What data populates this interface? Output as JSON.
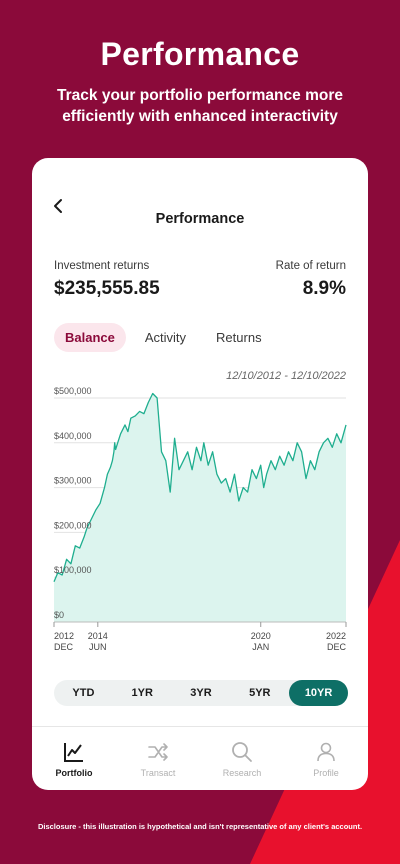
{
  "hero": {
    "title": "Performance",
    "subtitle": "Track your portfolio performance more efficiently with enhanced interactivity"
  },
  "colors": {
    "background": "#8b0a3a",
    "accent_red": "#e8112d",
    "chart_line": "#1fae8f",
    "chart_fill": "#dcf4ee",
    "active_period": "#0e6f66"
  },
  "screen": {
    "back_icon": "chevron-left-icon",
    "title": "Performance",
    "investment_returns": {
      "label": "Investment returns",
      "value": "$235,555.85"
    },
    "rate_of_return": {
      "label": "Rate of return",
      "value": "8.9%"
    },
    "tabs": [
      {
        "label": "Balance",
        "active": true
      },
      {
        "label": "Activity",
        "active": false
      },
      {
        "label": "Returns",
        "active": false
      }
    ],
    "date_range": "12/10/2012 - 12/10/2022",
    "periods": [
      {
        "label": "YTD",
        "active": false
      },
      {
        "label": "1YR",
        "active": false
      },
      {
        "label": "3YR",
        "active": false
      },
      {
        "label": "5YR",
        "active": false
      },
      {
        "label": "10YR",
        "active": true
      }
    ]
  },
  "chart_data": {
    "type": "area",
    "ylim": [
      0,
      500000
    ],
    "xlim": [
      2012.92,
      2022.92
    ],
    "y_ticks": [
      {
        "value": 500000,
        "label": "$500,000"
      },
      {
        "value": 400000,
        "label": "$400,000"
      },
      {
        "value": 300000,
        "label": "$300,000"
      },
      {
        "value": 200000,
        "label": "$200,000"
      },
      {
        "value": 100000,
        "label": "$100,000"
      },
      {
        "value": 0,
        "label": "$0"
      }
    ],
    "x_ticks": [
      {
        "value": 2012.92,
        "year": "2012",
        "month": "DEC"
      },
      {
        "value": 2014.42,
        "year": "2014",
        "month": "JUN"
      },
      {
        "value": 2020.0,
        "year": "2020",
        "month": "JAN"
      },
      {
        "value": 2022.92,
        "year": "2022",
        "month": "DEC"
      }
    ],
    "series": [
      {
        "x": [
          2012.92,
          2013.05,
          2013.2,
          2013.35,
          2013.5,
          2013.65,
          2013.8,
          2013.95,
          2014.05,
          2014.2,
          2014.35,
          2014.5,
          2014.65,
          2014.75,
          2014.85,
          2014.92,
          2014.97,
          2015.0,
          2015.03,
          2015.1,
          2015.2,
          2015.35,
          2015.45,
          2015.55,
          2015.7,
          2015.85,
          2016.0,
          2016.15,
          2016.3,
          2016.45,
          2016.6,
          2016.75,
          2016.9,
          2017.05,
          2017.2,
          2017.35,
          2017.5,
          2017.65,
          2017.8,
          2017.95,
          2018.05,
          2018.2,
          2018.35,
          2018.5,
          2018.65,
          2018.8,
          2018.95,
          2019.1,
          2019.25,
          2019.4,
          2019.55,
          2019.7,
          2019.85,
          2020.0,
          2020.1,
          2020.2,
          2020.35,
          2020.5,
          2020.65,
          2020.8,
          2020.95,
          2021.1,
          2021.25,
          2021.4,
          2021.55,
          2021.7,
          2021.85,
          2022.0,
          2022.15,
          2022.3,
          2022.45,
          2022.6,
          2022.75,
          2022.92
        ],
        "y": [
          90000,
          110000,
          105000,
          140000,
          130000,
          170000,
          165000,
          190000,
          210000,
          230000,
          250000,
          265000,
          300000,
          330000,
          345000,
          360000,
          380000,
          400000,
          385000,
          400000,
          420000,
          440000,
          425000,
          455000,
          460000,
          470000,
          465000,
          490000,
          510000,
          500000,
          380000,
          360000,
          290000,
          410000,
          340000,
          360000,
          380000,
          340000,
          390000,
          360000,
          400000,
          350000,
          380000,
          330000,
          310000,
          320000,
          290000,
          330000,
          270000,
          300000,
          290000,
          340000,
          320000,
          350000,
          300000,
          330000,
          360000,
          340000,
          370000,
          350000,
          380000,
          360000,
          400000,
          380000,
          320000,
          360000,
          340000,
          380000,
          400000,
          410000,
          390000,
          420000,
          400000,
          440000
        ]
      }
    ]
  },
  "bottom_nav": [
    {
      "label": "Portfolio",
      "icon": "portfolio-chart-icon",
      "active": true
    },
    {
      "label": "Transact",
      "icon": "transfer-arrows-icon",
      "active": false
    },
    {
      "label": "Research",
      "icon": "search-icon",
      "active": false
    },
    {
      "label": "Profile",
      "icon": "person-icon",
      "active": false
    }
  ],
  "disclosure": "Disclosure - this illustration is hypothetical and isn't representative of any client's account."
}
